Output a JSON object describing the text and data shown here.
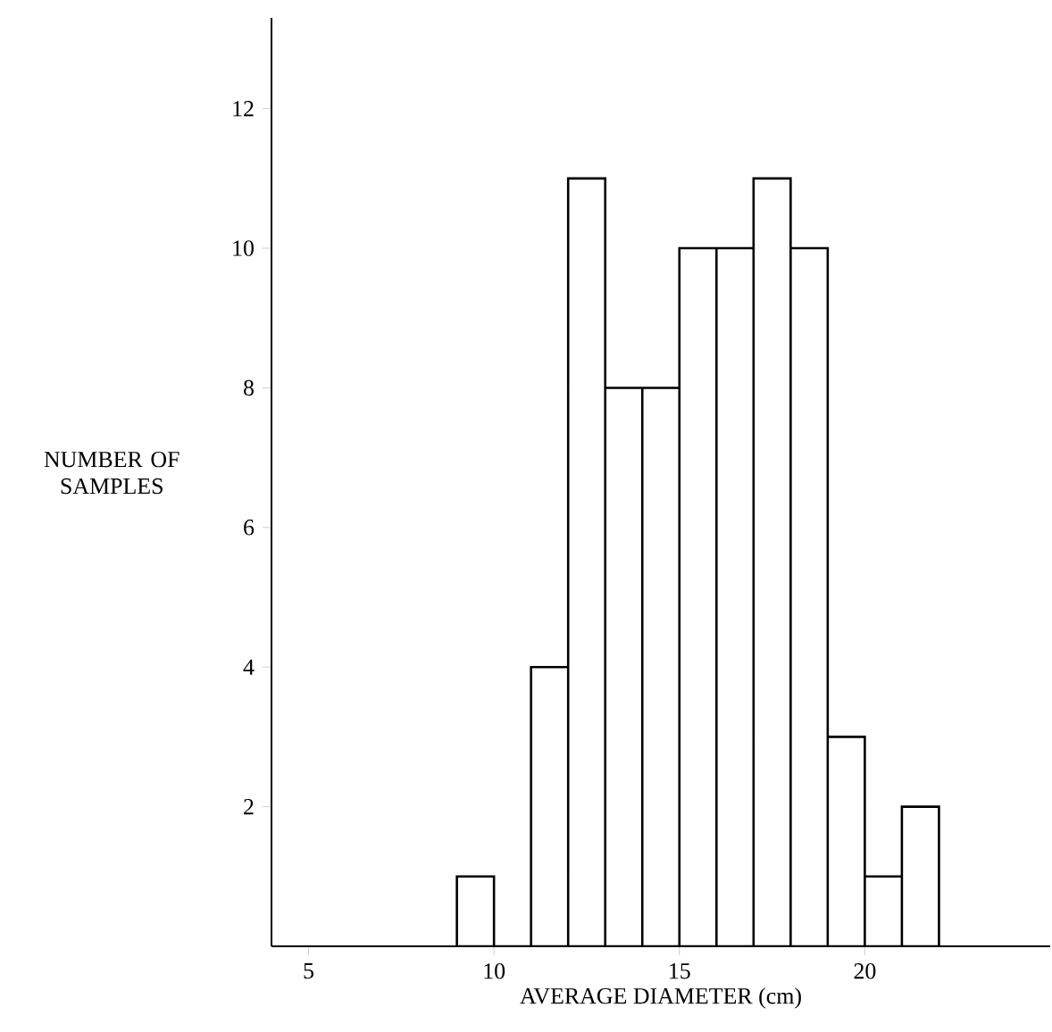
{
  "chart_data": {
    "type": "histogram",
    "xlabel": "AVERAGE DIAMETER (cm)",
    "ylabel": "NUMBER OF SAMPLES",
    "bins": [
      9,
      10,
      11,
      12,
      13,
      14,
      15,
      16,
      17,
      18,
      19,
      20,
      21,
      22
    ],
    "values": [
      1,
      0,
      4,
      11,
      8,
      8,
      10,
      10,
      11,
      10,
      3,
      1,
      2
    ],
    "color": "#ffffff",
    "xlim": [
      4,
      25
    ],
    "ylim": [
      0,
      13.3
    ],
    "xticks": [
      5,
      10,
      15,
      20
    ],
    "yticks": [
      2,
      4,
      6,
      8,
      10,
      12
    ]
  }
}
